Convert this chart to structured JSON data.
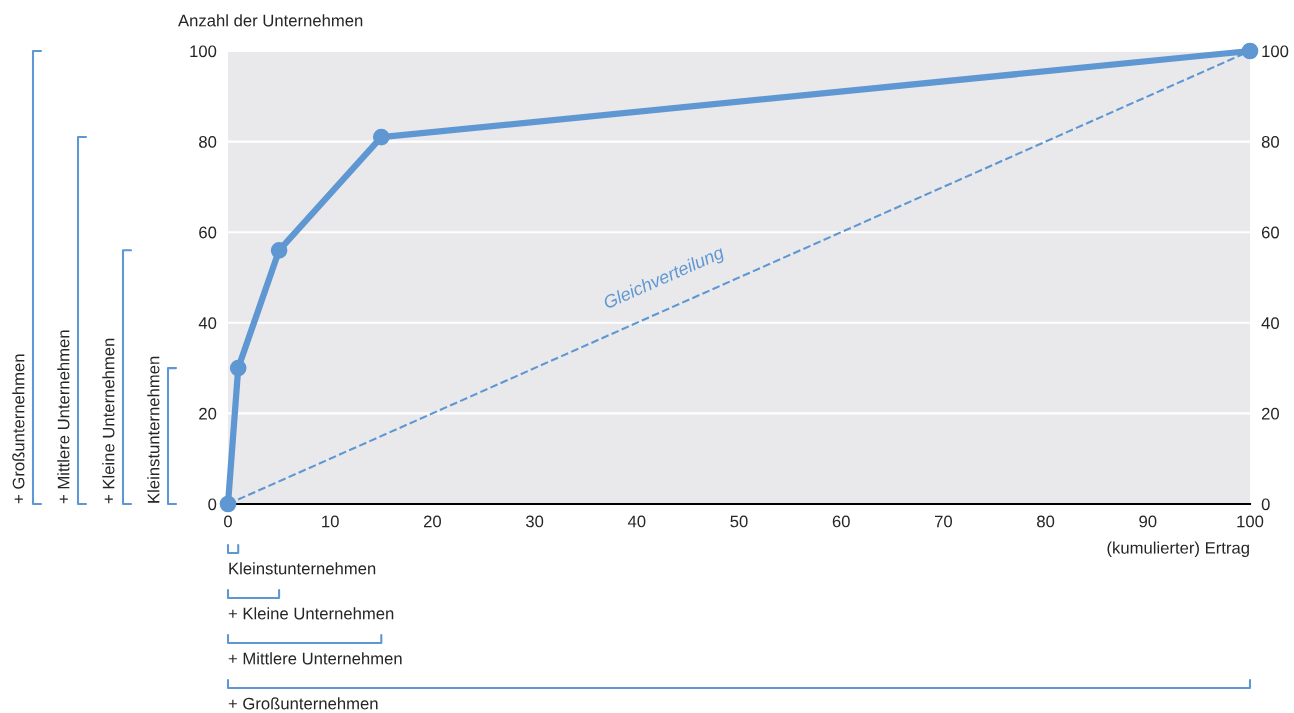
{
  "chart_data": {
    "type": "line",
    "xlabel": "(kumulierter) Ertrag",
    "ylabel": "Anzahl der Unternehmen",
    "x": [
      0,
      1,
      5,
      15,
      100
    ],
    "series": [
      {
        "color": "#5f97d2",
        "values": [
          0,
          30,
          56,
          81,
          100
        ],
        "marker": "circle",
        "line_style": "solid"
      },
      {
        "color": "#5f97d2",
        "x": [
          0,
          100
        ],
        "values": [
          0,
          100
        ],
        "marker": "none",
        "line_style": "dashed"
      }
    ],
    "xlim": [
      0,
      100
    ],
    "xticks": [
      0,
      10,
      20,
      30,
      40,
      50,
      60,
      70,
      80,
      90,
      100
    ],
    "ylim": [
      0,
      100
    ],
    "yticks": [
      0,
      20,
      40,
      60,
      80,
      100
    ],
    "y2lim": [
      0,
      100
    ],
    "y2ticks": [
      0,
      20,
      40,
      60,
      80,
      100
    ],
    "grid": "y",
    "annotations": [
      "Gleichverteilung",
      "Kleinstunternehmen",
      "+ Kleine Unternehmen",
      "+ Mittlere Unternehmen",
      "+ Großunternehmen",
      "Kleinstunternehmen",
      "+ Kleine Unternehmen",
      "+ Mittlere Unternehmen",
      "+ Großunternehmen"
    ]
  }
}
